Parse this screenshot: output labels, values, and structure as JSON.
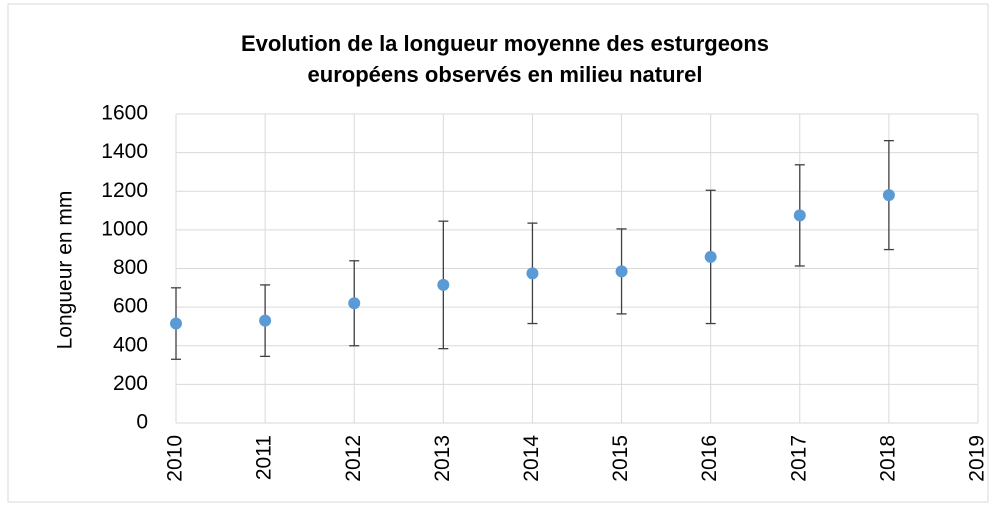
{
  "chart_data": {
    "type": "scatter",
    "title": [
      "Evolution de la longueur moyenne des esturgeons",
      "européens observés en milieu naturel"
    ],
    "y_label": "Longueur en mm",
    "x": [
      2010,
      2011,
      2012,
      2013,
      2014,
      2015,
      2016,
      2017,
      2018
    ],
    "values": [
      515,
      530,
      620,
      715,
      775,
      785,
      860,
      1075,
      1180
    ],
    "errors": [
      185,
      185,
      220,
      330,
      260,
      220,
      345,
      262,
      282
    ],
    "color": "#5b9bd5",
    "error_color": "#404040",
    "xlim": [
      2010,
      2019
    ],
    "xticks": [
      2010,
      2011,
      2012,
      2013,
      2014,
      2015,
      2016,
      2017,
      2018,
      2019
    ],
    "ylim": [
      0,
      1600
    ],
    "yticks": [
      0,
      200,
      400,
      600,
      800,
      1000,
      1200,
      1400,
      1600
    ],
    "grid": true
  }
}
